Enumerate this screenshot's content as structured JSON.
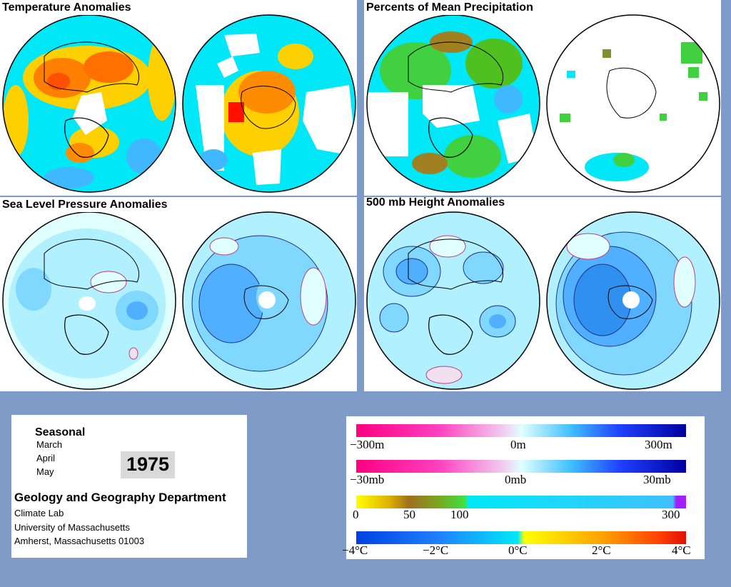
{
  "panels": {
    "temperature": {
      "title": "Temperature Anomalies"
    },
    "precipitation": {
      "title": "Percents of Mean Precipitation"
    },
    "pressure": {
      "title": "Sea Level Pressure Anomalies"
    },
    "height": {
      "title": "500 mb Height Anomalies"
    }
  },
  "info": {
    "season": "Seasonal",
    "months": [
      "March",
      "April",
      "May"
    ],
    "year": "1975",
    "department": "Geology and Geography Department",
    "lab": "Climate Lab",
    "university": "University of Massachusetts",
    "location": "Amherst, Massachusetts 01003"
  },
  "legend": {
    "height_scale": {
      "labels": [
        "−300m",
        "0m",
        "300m"
      ]
    },
    "pressure_scale": {
      "labels": [
        "−30mb",
        "0mb",
        "30mb"
      ]
    },
    "precip_scale": {
      "labels": [
        "0",
        "50",
        "100",
        "300"
      ]
    },
    "temp_scale": {
      "labels": [
        "−4°C",
        "−2°C",
        "0°C",
        "2°C",
        "4°C"
      ]
    }
  },
  "colors": {
    "background": "#7f9cc8",
    "negative_anomaly": "#ff0080",
    "positive_anomaly": "#0000c0",
    "neutral": "#e0ffff",
    "precip_dry": "#ffff00",
    "precip_wet": "#00e0ff",
    "temp_cold": "#0040ff",
    "temp_warm": "#ff2000"
  }
}
